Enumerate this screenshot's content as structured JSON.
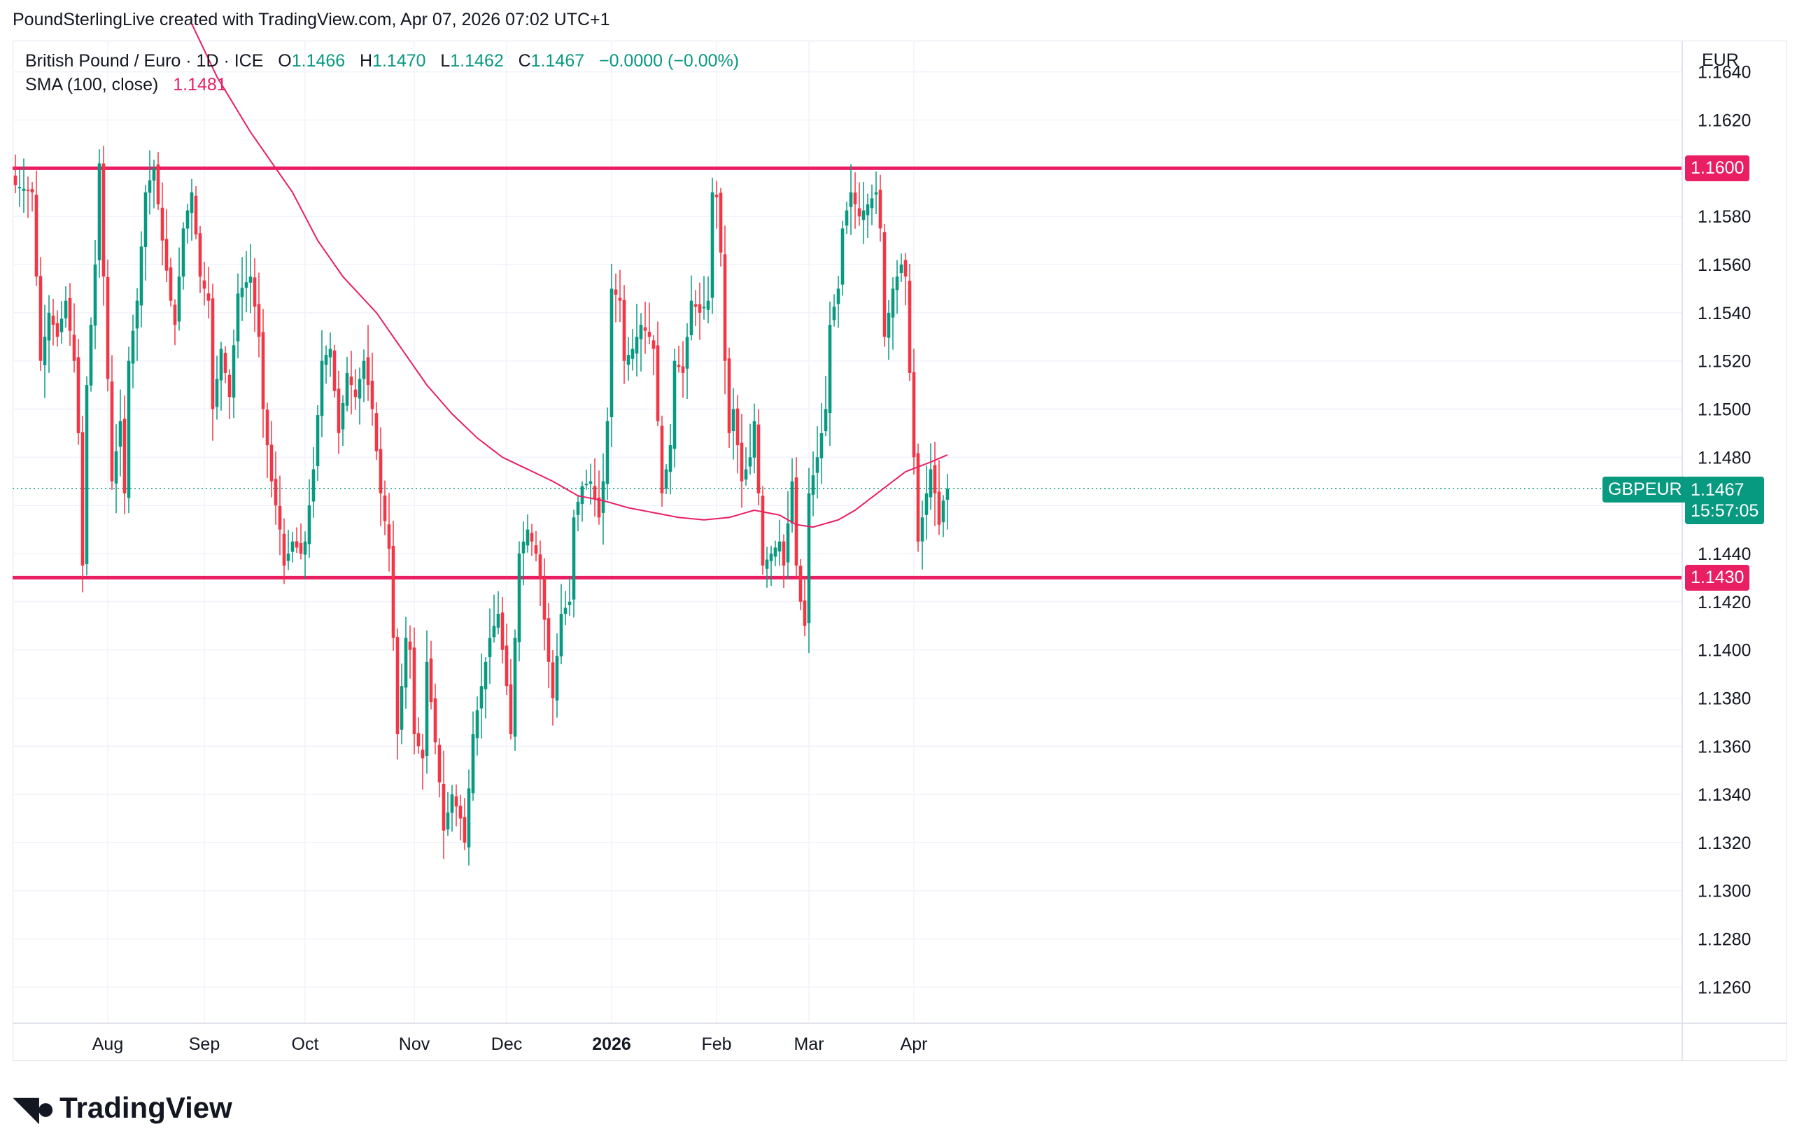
{
  "header": {
    "attribution": "PoundSterlingLive created with TradingView.com, Apr 07, 2026 07:02 UTC+1"
  },
  "legend": {
    "symbol": "British Pound / Euro · 1D · ICE",
    "open_label": "O",
    "open": "1.1466",
    "high_label": "H",
    "high": "1.1470",
    "low_label": "L",
    "low": "1.1462",
    "close_label": "C",
    "close": "1.1467",
    "change": "−0.0000 (−0.00%)",
    "sma_label": "SMA (100, close)",
    "sma_value": "1.1481"
  },
  "axis": {
    "currency": "EUR"
  },
  "tags": {
    "symbol": "GBPEUR",
    "last_price": "1.1467",
    "countdown": "15:57:05",
    "resistance": "1.1600",
    "support": "1.1430"
  },
  "brand": {
    "name": "TradingView"
  },
  "colors": {
    "up": "#089981",
    "down": "#f23645",
    "sma": "#e91e63",
    "level": "#e91e63",
    "grid": "#f0f3fa"
  },
  "chart_data": {
    "type": "candlestick",
    "yticks": [
      1.126,
      1.128,
      1.13,
      1.132,
      1.134,
      1.136,
      1.138,
      1.14,
      1.142,
      1.144,
      1.146,
      1.148,
      1.15,
      1.152,
      1.154,
      1.156,
      1.158,
      1.162,
      1.164
    ],
    "ylim": [
      1.1245,
      1.1653
    ],
    "xticks": [
      {
        "label": "Aug",
        "bar": 22,
        "bold": false
      },
      {
        "label": "Sep",
        "bar": 45,
        "bold": false
      },
      {
        "label": "Oct",
        "bar": 69,
        "bold": false
      },
      {
        "label": "Nov",
        "bar": 95,
        "bold": false
      },
      {
        "label": "Dec",
        "bar": 117,
        "bold": false
      },
      {
        "label": "2026",
        "bar": 142,
        "bold": true
      },
      {
        "label": "Feb",
        "bar": 167,
        "bold": false
      },
      {
        "label": "Mar",
        "bar": 189,
        "bold": false
      },
      {
        "label": "Apr",
        "bar": 214,
        "bold": false
      }
    ],
    "levels": [
      1.16,
      1.143
    ],
    "last_price": 1.1467,
    "series": [
      {
        "name": "British Pound / Euro",
        "anchors": [
          [
            0,
            1.1593
          ],
          [
            4,
            1.159
          ],
          [
            6,
            1.152
          ],
          [
            8,
            1.154
          ],
          [
            10,
            1.153
          ],
          [
            12,
            1.1545
          ],
          [
            14,
            1.152
          ],
          [
            15,
            1.149
          ],
          [
            16,
            1.1435
          ],
          [
            17,
            1.151
          ],
          [
            19,
            1.156
          ],
          [
            20,
            1.1602
          ],
          [
            21,
            1.1555
          ],
          [
            23,
            1.147
          ],
          [
            25,
            1.1495
          ],
          [
            26,
            1.1465
          ],
          [
            27,
            1.152
          ],
          [
            29,
            1.1545
          ],
          [
            31,
            1.159
          ],
          [
            33,
            1.16
          ],
          [
            35,
            1.157
          ],
          [
            37,
            1.1545
          ],
          [
            38,
            1.1535
          ],
          [
            40,
            1.1575
          ],
          [
            42,
            1.159
          ],
          [
            44,
            1.1555
          ],
          [
            46,
            1.1545
          ],
          [
            47,
            1.15
          ],
          [
            49,
            1.1525
          ],
          [
            51,
            1.1505
          ],
          [
            53,
            1.1548
          ],
          [
            56,
            1.1555
          ],
          [
            58,
            1.153
          ],
          [
            59,
            1.15
          ],
          [
            61,
            1.147
          ],
          [
            63,
            1.145
          ],
          [
            64,
            1.1435
          ],
          [
            66,
            1.1445
          ],
          [
            68,
            1.144
          ],
          [
            69,
            1.1445
          ],
          [
            71,
            1.1475
          ],
          [
            73,
            1.152
          ],
          [
            75,
            1.1525
          ],
          [
            77,
            1.149
          ],
          [
            79,
            1.1515
          ],
          [
            81,
            1.1505
          ],
          [
            83,
            1.152
          ],
          [
            85,
            1.15
          ],
          [
            87,
            1.1465
          ],
          [
            89,
            1.1442
          ],
          [
            90,
            1.1405
          ],
          [
            91,
            1.1365
          ],
          [
            92,
            1.1385
          ],
          [
            93,
            1.1405
          ],
          [
            94,
            1.14
          ],
          [
            95,
            1.1365
          ],
          [
            97,
            1.1355
          ],
          [
            98,
            1.1395
          ],
          [
            101,
            1.1345
          ],
          [
            102,
            1.1325
          ],
          [
            104,
            1.134
          ],
          [
            106,
            1.133
          ],
          [
            107,
            1.132
          ],
          [
            109,
            1.1365
          ],
          [
            111,
            1.1385
          ],
          [
            113,
            1.1405
          ],
          [
            115,
            1.1415
          ],
          [
            117,
            1.1385
          ],
          [
            118,
            1.1365
          ],
          [
            119,
            1.1405
          ],
          [
            120,
            1.144
          ],
          [
            122,
            1.145
          ],
          [
            124,
            1.144
          ],
          [
            125,
            1.143
          ],
          [
            127,
            1.1395
          ],
          [
            128,
            1.138
          ],
          [
            130,
            1.1415
          ],
          [
            132,
            1.142
          ],
          [
            133,
            1.1455
          ],
          [
            135,
            1.1468
          ],
          [
            137,
            1.147
          ],
          [
            139,
            1.1455
          ],
          [
            140,
            1.147
          ],
          [
            141,
            1.1495
          ],
          [
            142,
            1.155
          ],
          [
            144,
            1.1545
          ],
          [
            145,
            1.152
          ],
          [
            147,
            1.1525
          ],
          [
            149,
            1.1535
          ],
          [
            151,
            1.153
          ],
          [
            152,
            1.1525
          ],
          [
            154,
            1.1465
          ],
          [
            156,
            1.1485
          ],
          [
            157,
            1.152
          ],
          [
            159,
            1.1515
          ],
          [
            161,
            1.1545
          ],
          [
            163,
            1.154
          ],
          [
            165,
            1.1545
          ],
          [
            166,
            1.159
          ],
          [
            167,
            1.1588
          ],
          [
            168,
            1.1565
          ],
          [
            169,
            1.152
          ],
          [
            170,
            1.149
          ],
          [
            171,
            1.15
          ],
          [
            173,
            1.147
          ],
          [
            175,
            1.148
          ],
          [
            176,
            1.1495
          ],
          [
            177,
            1.1465
          ],
          [
            178,
            1.1435
          ],
          [
            180,
            1.144
          ],
          [
            182,
            1.1445
          ],
          [
            183,
            1.1435
          ],
          [
            185,
            1.147
          ],
          [
            186,
            1.1435
          ],
          [
            187,
            1.142
          ],
          [
            188,
            1.141
          ],
          [
            189,
            1.1465
          ],
          [
            191,
            1.148
          ],
          [
            193,
            1.15
          ],
          [
            194,
            1.1535
          ],
          [
            196,
            1.155
          ],
          [
            197,
            1.1575
          ],
          [
            199,
            1.159
          ],
          [
            201,
            1.158
          ],
          [
            203,
            1.1585
          ],
          [
            205,
            1.159
          ],
          [
            206,
            1.1575
          ],
          [
            207,
            1.153
          ],
          [
            209,
            1.155
          ],
          [
            211,
            1.156
          ],
          [
            212,
            1.1555
          ],
          [
            213,
            1.1515
          ],
          [
            214,
            1.148
          ],
          [
            215,
            1.1445
          ],
          [
            216,
            1.1455
          ],
          [
            218,
            1.1475
          ],
          [
            219,
            1.1465
          ],
          [
            220,
            1.1452
          ],
          [
            221,
            1.1462
          ],
          [
            222,
            1.1467
          ]
        ]
      },
      {
        "name": "SMA (100, close)",
        "anchors": [
          [
            42,
            1.166
          ],
          [
            48,
            1.1638
          ],
          [
            56,
            1.1615
          ],
          [
            62,
            1.16
          ],
          [
            66,
            1.159
          ],
          [
            72,
            1.157
          ],
          [
            78,
            1.1555
          ],
          [
            86,
            1.154
          ],
          [
            92,
            1.1525
          ],
          [
            98,
            1.151
          ],
          [
            104,
            1.1498
          ],
          [
            110,
            1.1488
          ],
          [
            116,
            1.148
          ],
          [
            122,
            1.1475
          ],
          [
            128,
            1.147
          ],
          [
            134,
            1.1464
          ],
          [
            140,
            1.1462
          ],
          [
            146,
            1.1459
          ],
          [
            152,
            1.1457
          ],
          [
            158,
            1.1455
          ],
          [
            164,
            1.1454
          ],
          [
            170,
            1.1455
          ],
          [
            176,
            1.1458
          ],
          [
            182,
            1.1456
          ],
          [
            186,
            1.1452
          ],
          [
            190,
            1.1451
          ],
          [
            196,
            1.1454
          ],
          [
            200,
            1.1458
          ],
          [
            206,
            1.1466
          ],
          [
            212,
            1.1474
          ],
          [
            218,
            1.1478
          ],
          [
            222,
            1.1481
          ]
        ]
      }
    ]
  }
}
